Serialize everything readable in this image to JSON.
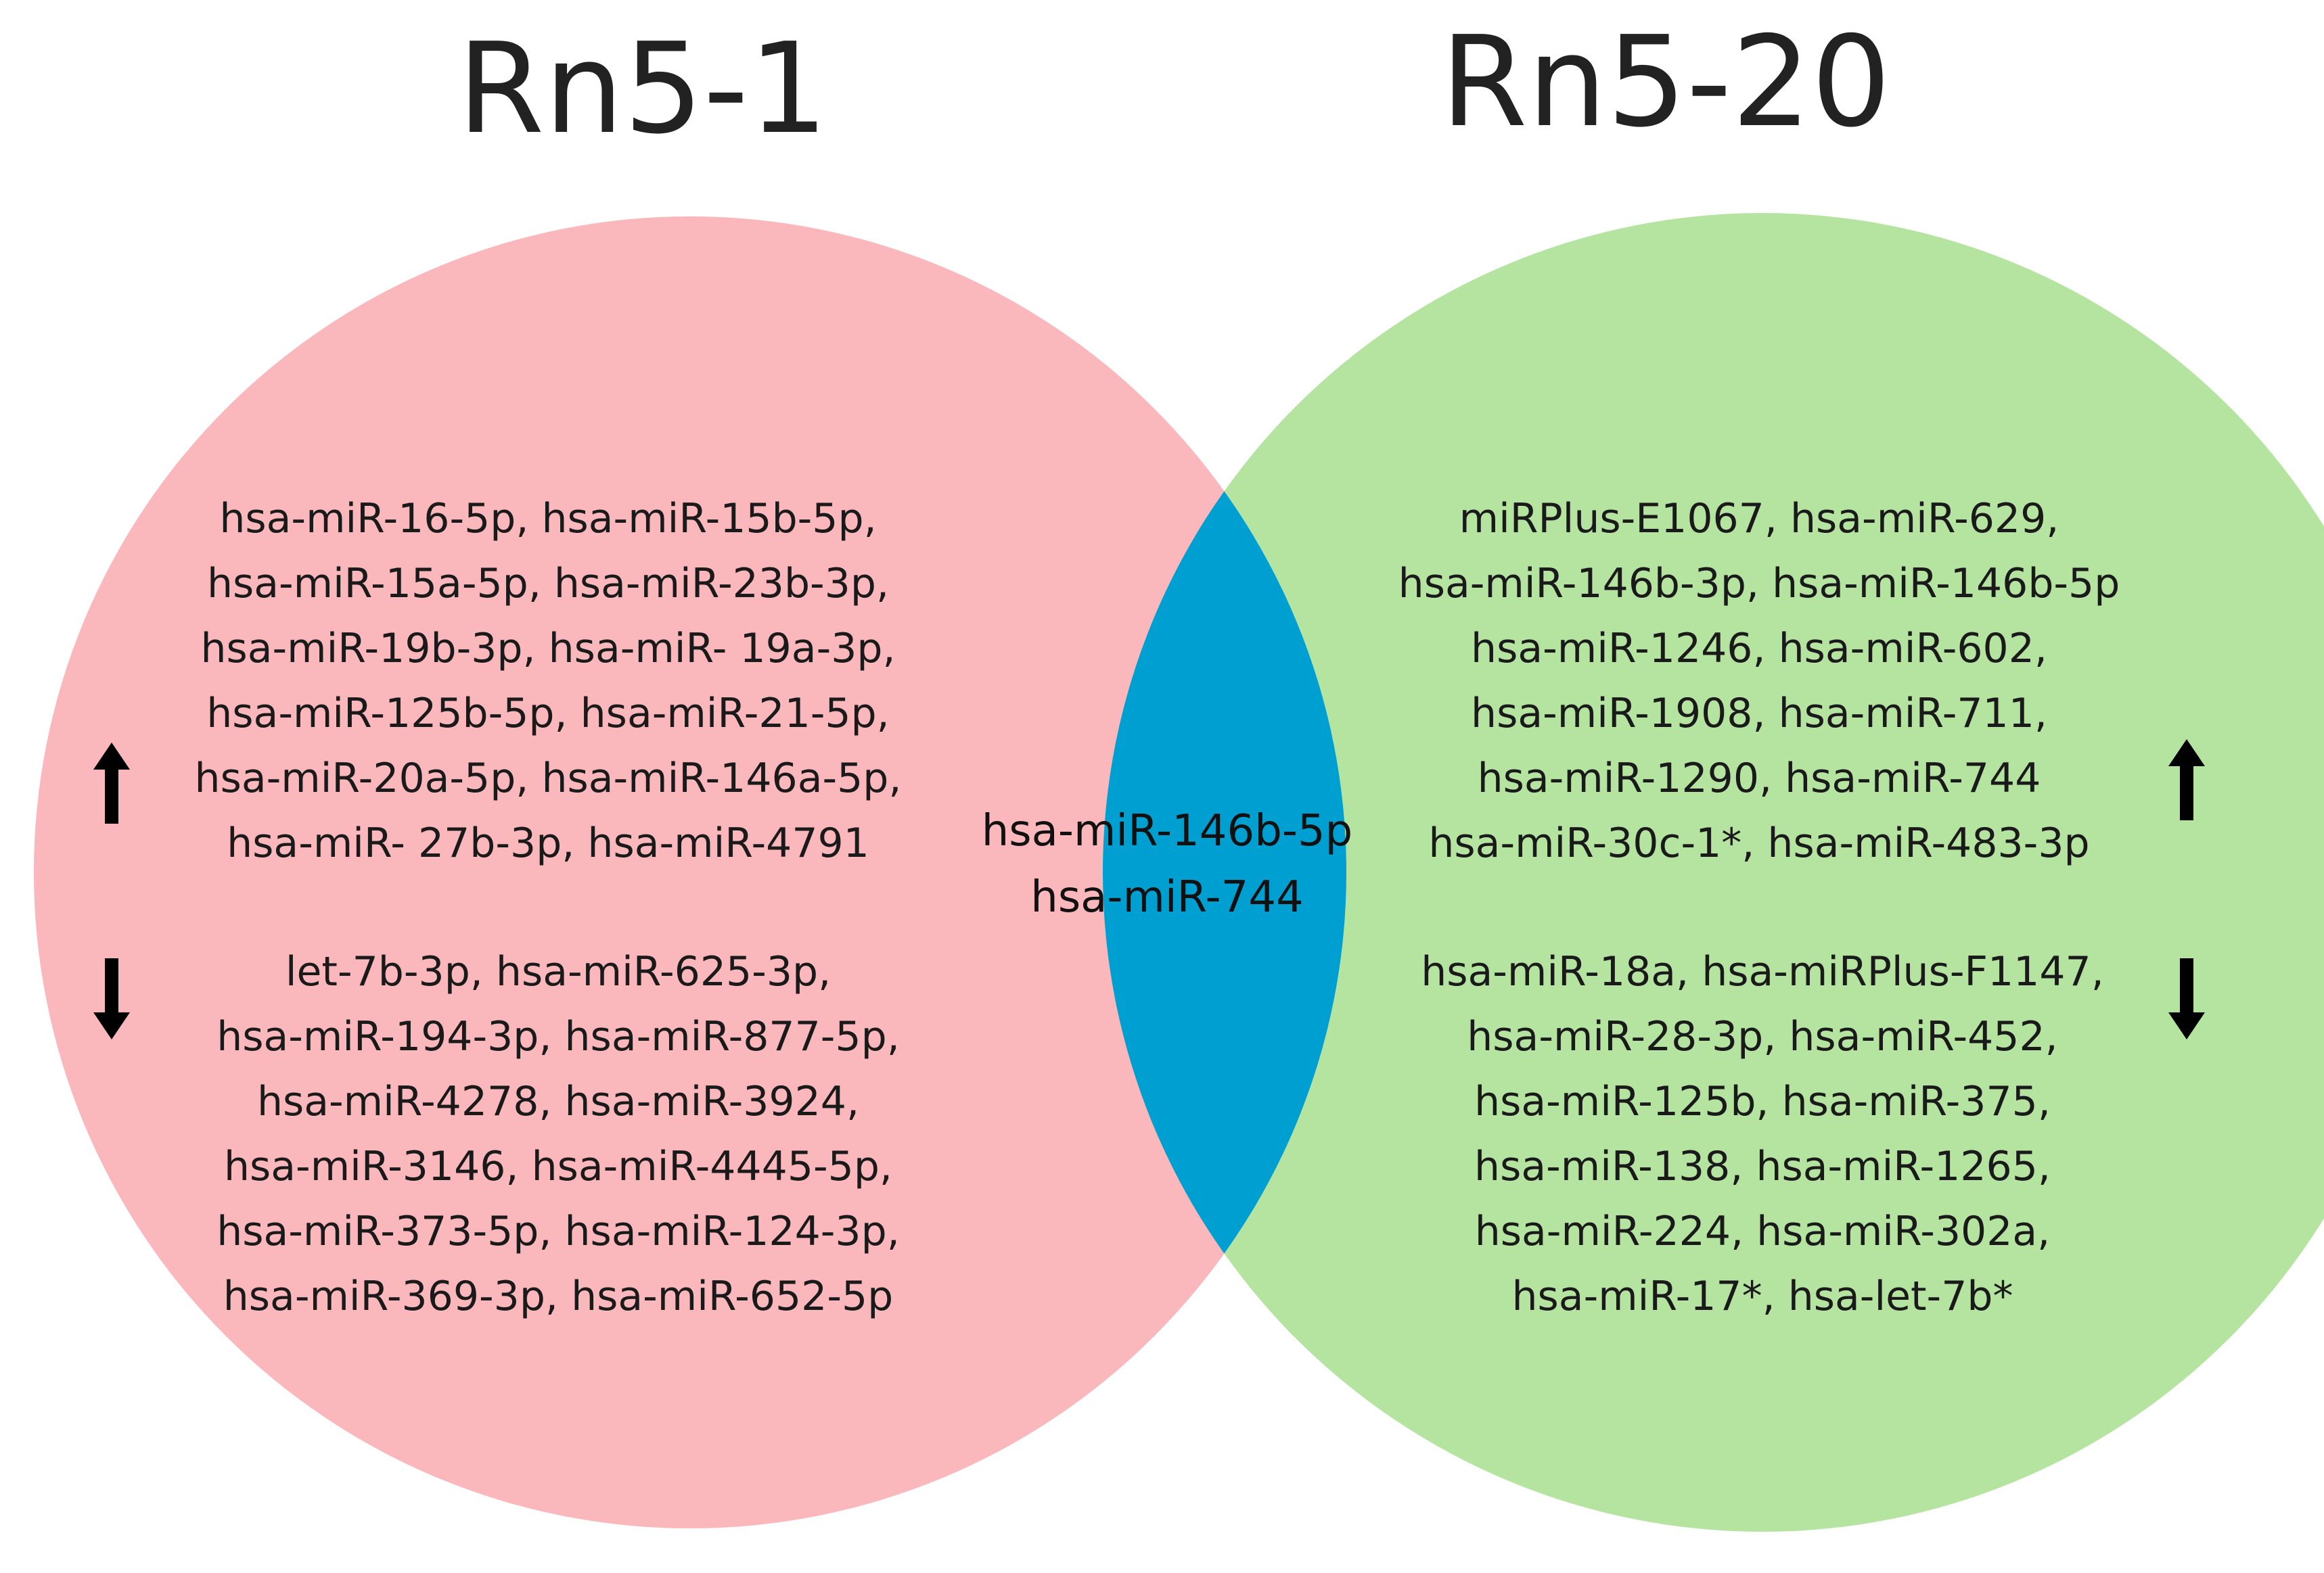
{
  "diagram": {
    "colors": {
      "left_set": "#fbb8bc",
      "right_set": "#b5e4a1",
      "intersection": "#009fd1",
      "arrow": "#000000"
    },
    "left_set": {
      "title": "Rn5-1",
      "up_items": [
        "hsa-miR-16-5p, hsa-miR-15b-5p,",
        "hsa-miR-15a-5p, hsa-miR-23b-3p,",
        "hsa-miR-19b-3p, hsa-miR- 19a-3p,",
        "hsa-miR-125b-5p, hsa-miR-21-5p,",
        "hsa-miR-20a-5p, hsa-miR-146a-5p,",
        "hsa-miR- 27b-3p, hsa-miR-4791"
      ],
      "down_items": [
        "let-7b-3p, hsa-miR-625-3p,",
        "hsa-miR-194-3p, hsa-miR-877-5p,",
        "hsa-miR-4278, hsa-miR-3924,",
        "hsa-miR-3146, hsa-miR-4445-5p,",
        "hsa-miR-373-5p, hsa-miR-124-3p,",
        "hsa-miR-369-3p, hsa-miR-652-5p"
      ],
      "up_icon": "arrow-up-icon",
      "down_icon": "arrow-down-icon"
    },
    "right_set": {
      "title": "Rn5-20",
      "up_items": [
        "miRPlus-E1067, hsa-miR-629,",
        "hsa-miR-146b-3p, hsa-miR-146b-5p",
        "hsa-miR-1246, hsa-miR-602,",
        "hsa-miR-1908, hsa-miR-711,",
        "hsa-miR-1290, hsa-miR-744",
        "hsa-miR-30c-1*, hsa-miR-483-3p"
      ],
      "down_items": [
        "hsa-miR-18a, hsa-miRPlus-F1147,",
        "hsa-miR-28-3p, hsa-miR-452,",
        "hsa-miR-125b, hsa-miR-375,",
        "hsa-miR-138, hsa-miR-1265,",
        "hsa-miR-224, hsa-miR-302a,",
        "hsa-miR-17*, hsa-let-7b*"
      ],
      "up_icon": "arrow-up-icon",
      "down_icon": "arrow-down-icon"
    },
    "intersection": {
      "items": [
        "hsa-miR-146b-5p",
        "hsa-miR-744"
      ]
    }
  }
}
